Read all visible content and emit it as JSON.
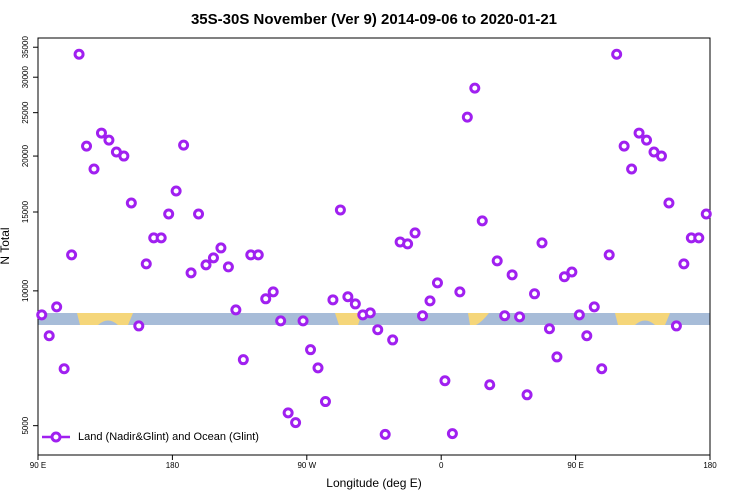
{
  "chart_data": {
    "type": "scatter",
    "title": "35S-30S November (Ver 9)   2014-09-06 to 2020-01-21",
    "x_label": "Longitude (deg E)",
    "y_label": "N Total",
    "log_y": true,
    "grid": false,
    "legend_position": "bottom-left",
    "xlim": [
      90,
      540
    ],
    "ylim": [
      4300,
      36700
    ],
    "xticks": [
      {
        "value": 90,
        "label": "90 E"
      },
      180,
      {
        "value": 270,
        "label": "90 W"
      },
      {
        "value": 360,
        "label": "0"
      },
      {
        "value": 450,
        "label": "90 E"
      },
      {
        "value": 540,
        "label": "180"
      }
    ],
    "yticks": [
      5000,
      10000,
      15000,
      20000,
      25000,
      30000,
      35000
    ],
    "series": [
      {
        "name": "Land (Nadir&Glint) and Ocean (Glint)",
        "color": "#a020f0",
        "x": [
          92.5,
          97.5,
          102.5,
          107.5,
          112.5,
          117.5,
          122.5,
          127.5,
          132.5,
          137.5,
          142.5,
          147.5,
          152.5,
          157.5,
          162.5,
          167.5,
          172.5,
          177.5,
          182.5,
          187.5,
          192.5,
          197.5,
          202.5,
          207.5,
          212.5,
          217.5,
          222.5,
          227.5,
          232.5,
          237.5,
          242.5,
          247.5,
          252.5,
          257.5,
          262.5,
          267.5,
          272.5,
          277.5,
          282.5,
          287.5,
          292.5,
          297.5,
          302.5,
          307.5,
          312.5,
          317.5,
          322.5,
          327.5,
          332.5,
          337.5,
          342.5,
          347.5,
          352.5,
          357.5,
          362.5,
          367.5,
          372.5,
          377.5,
          382.5,
          387.5,
          392.5,
          397.5,
          402.5,
          407.5,
          412.5,
          417.5,
          422.5,
          427.5,
          432.5,
          437.5,
          442.5,
          447.5,
          452.5,
          457.5,
          462.5,
          467.5,
          472.5,
          477.5,
          482.5,
          487.5,
          492.5,
          497.5,
          502.5,
          507.5,
          512.5,
          517.5,
          522.5,
          527.5,
          532.5,
          537.5
        ],
        "values": [
          8840,
          7940,
          9210,
          6700,
          12030,
          33760,
          21050,
          18710,
          22510,
          21710,
          20420,
          20000,
          15710,
          8350,
          11490,
          13130,
          13130,
          14850,
          16710,
          21160,
          10970,
          14850,
          11430,
          11850,
          12470,
          11310,
          9070,
          7020,
          12030,
          12030,
          9600,
          9950,
          8570,
          5340,
          5080,
          8570,
          7390,
          6730,
          5660,
          9550,
          15160,
          9700,
          9350,
          8840,
          8930,
          8190,
          4780,
          7770,
          12860,
          12730,
          13470,
          8800,
          9500,
          10420,
          6300,
          4800,
          9950,
          24430,
          28360,
          14330,
          6170,
          11670,
          8800,
          10860,
          8750,
          5860,
          9850,
          12800,
          8230,
          7120,
          10750,
          11020,
          8840,
          7940,
          9210,
          6700,
          12030,
          33760,
          21050,
          18710,
          22510,
          21710,
          20420,
          20000,
          15710,
          8350,
          11490,
          13130,
          13130,
          14850
        ]
      }
    ]
  }
}
